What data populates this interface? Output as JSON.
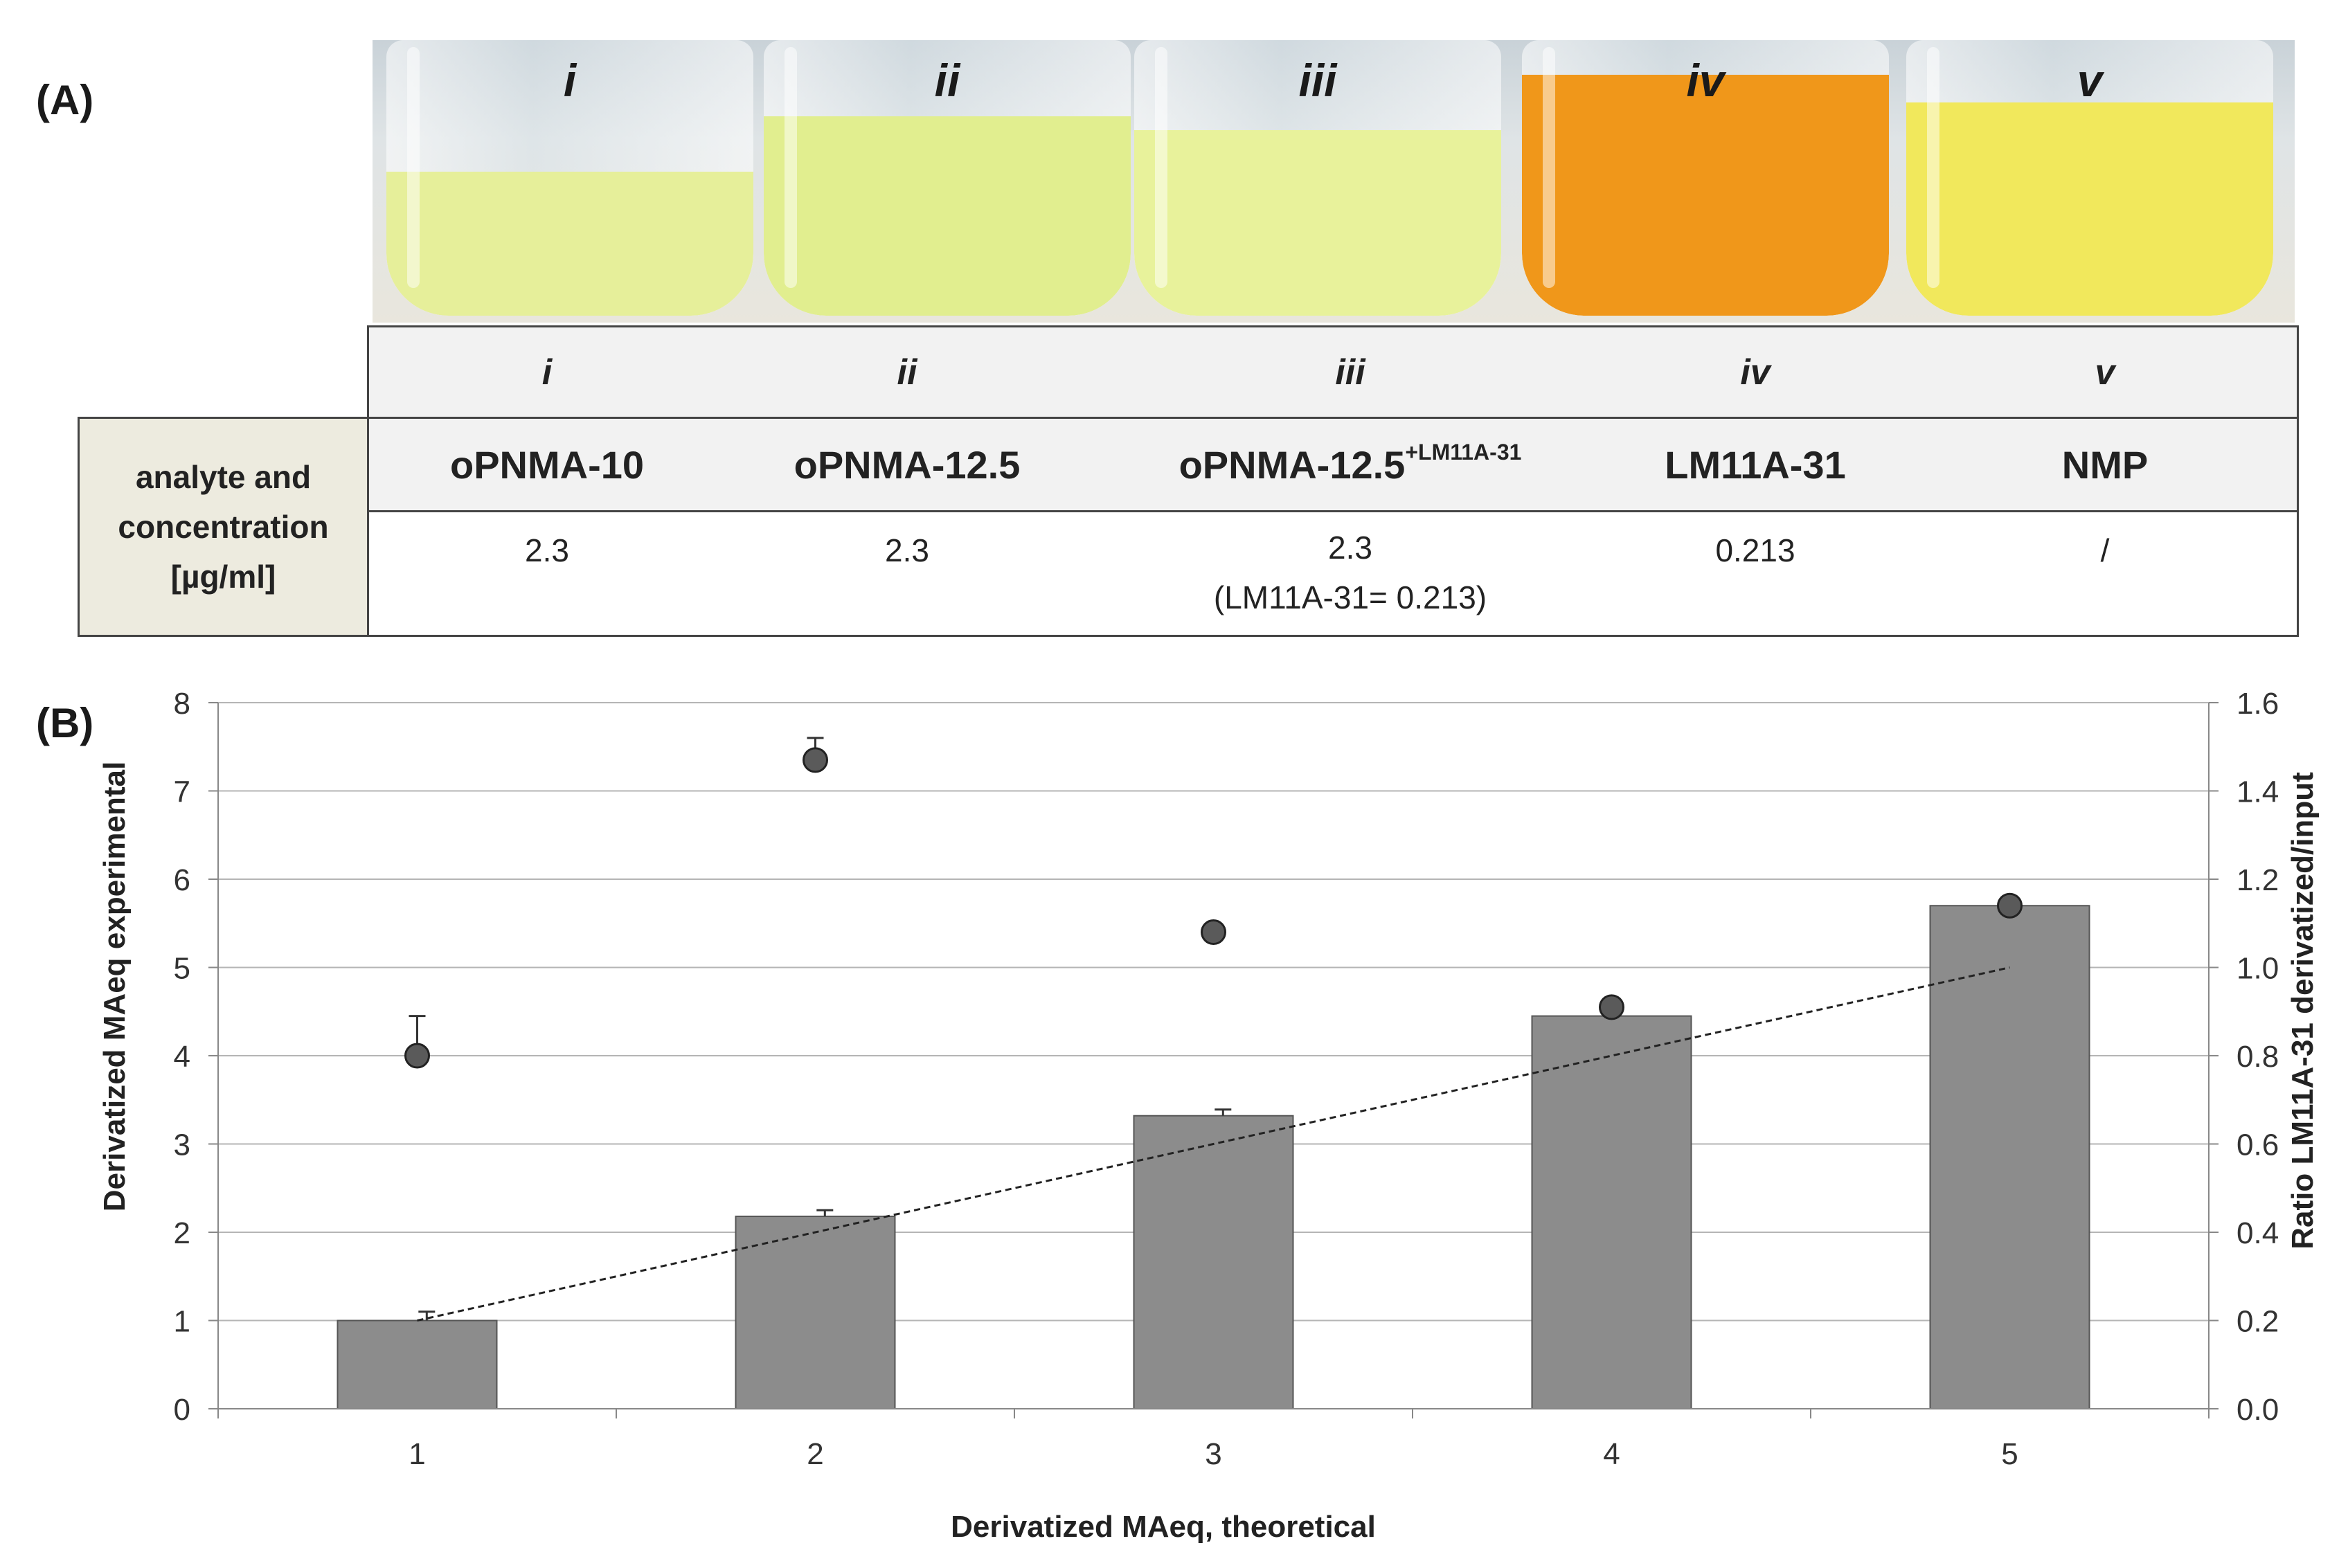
{
  "panel_a_label": "(A)",
  "panel_b_label": "(B)",
  "vials": [
    {
      "label": "i",
      "color": "#e6ef9a"
    },
    {
      "label": "ii",
      "color": "#e1ee8f"
    },
    {
      "label": "iii",
      "color": "#e8f29b"
    },
    {
      "label": "iv",
      "color": "#f0971a"
    },
    {
      "label": "v",
      "color": "#f1e85c"
    }
  ],
  "table": {
    "row_header": [
      "analyte and",
      "concentration",
      "[µg/ml]"
    ],
    "columns": [
      {
        "roman": "i",
        "analyte": "oPNMA-10",
        "analyte_sup": "",
        "conc": "2.3",
        "conc_note": ""
      },
      {
        "roman": "ii",
        "analyte": "oPNMA-12.5",
        "analyte_sup": "",
        "conc": "2.3",
        "conc_note": ""
      },
      {
        "roman": "iii",
        "analyte": "oPNMA-12.5",
        "analyte_sup": "+LM11A-31",
        "conc": "2.3",
        "conc_note": "(LM11A-31= 0.213)"
      },
      {
        "roman": "iv",
        "analyte": "LM11A-31",
        "analyte_sup": "",
        "conc": "0.213",
        "conc_note": ""
      },
      {
        "roman": "v",
        "analyte": "NMP",
        "analyte_sup": "",
        "conc": "/",
        "conc_note": ""
      }
    ]
  },
  "chart_data": {
    "type": "bar",
    "xlabel": "Derivatized MAeq, theoretical",
    "ylabel": "Derivatized MAeq experimental",
    "y2label": "Ratio LM11A-31 derivatized/input",
    "categories": [
      "1",
      "2",
      "3",
      "4",
      "5"
    ],
    "ylim": [
      0,
      8
    ],
    "y2lim": [
      0.0,
      1.6
    ],
    "yticks": [
      "0",
      "1",
      "2",
      "3",
      "4",
      "5",
      "6",
      "7",
      "8"
    ],
    "y2ticks": [
      "0.0",
      "0.2",
      "0.4",
      "0.6",
      "0.8",
      "1.0",
      "1.2",
      "1.4",
      "1.6"
    ],
    "bar_series": {
      "name": "Derivatized MAeq experimental",
      "values": [
        1.0,
        2.18,
        3.32,
        4.45,
        5.7
      ],
      "errors": [
        0.1,
        0.07,
        0.07,
        0.0,
        0.0
      ],
      "color": "#8c8c8c"
    },
    "ratio_series": {
      "name": "Ratio LM11A-31 derivatized/input",
      "values": [
        0.8,
        1.47,
        1.08,
        0.91,
        1.14
      ],
      "errors": [
        0.09,
        0.05,
        0.01,
        0.0,
        0.01
      ],
      "color": "#5a5a5a"
    },
    "trend_line": {
      "name": "theoretical",
      "x": [
        1,
        5
      ],
      "y": [
        1,
        5
      ]
    }
  }
}
